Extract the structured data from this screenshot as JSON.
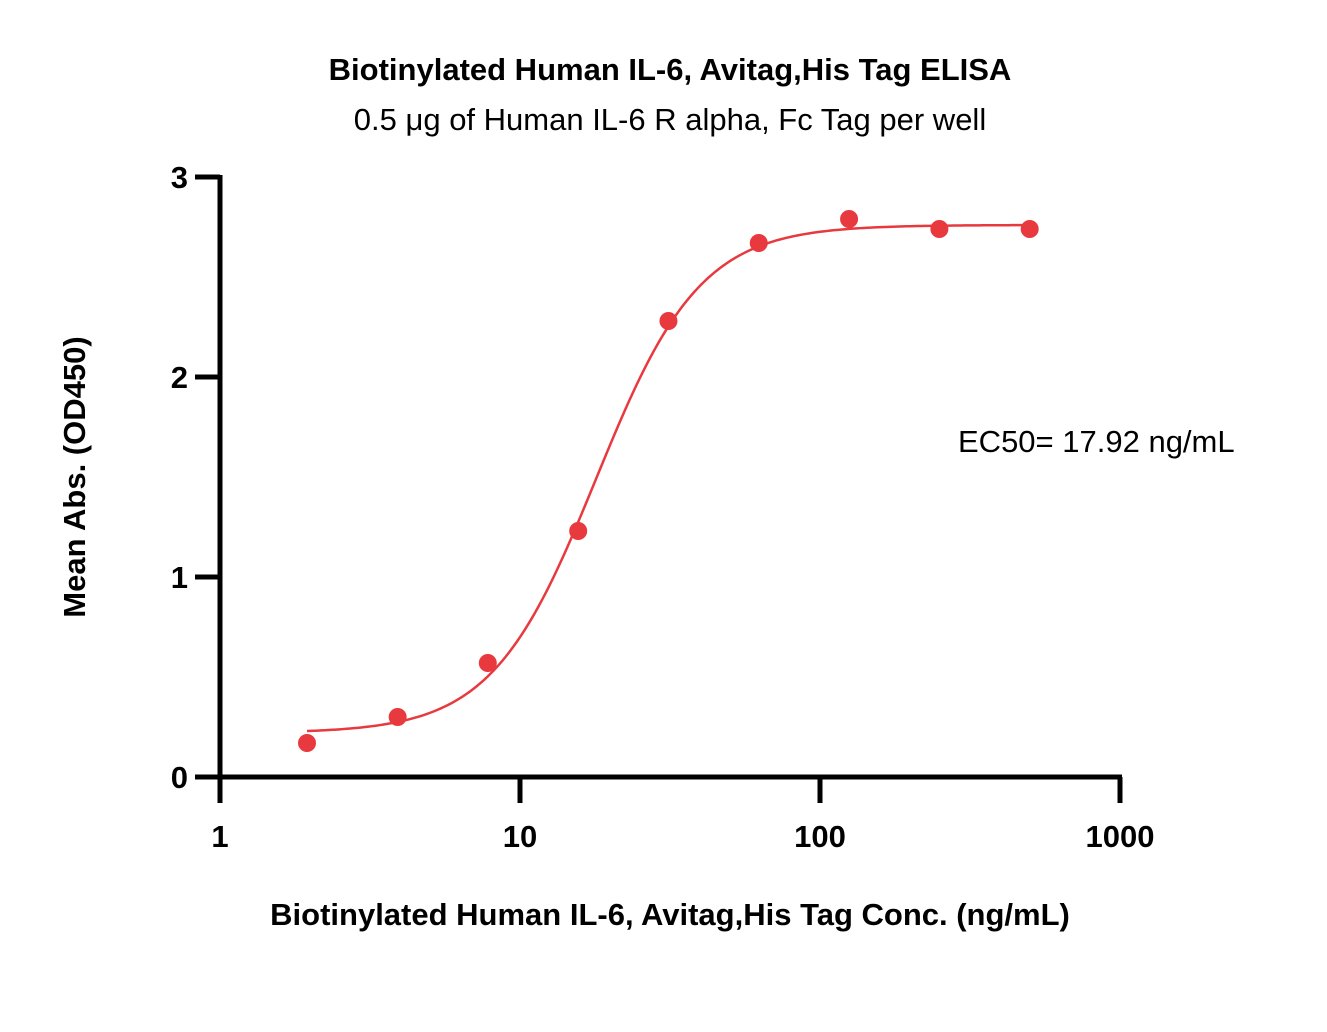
{
  "chart_data": {
    "type": "scatter",
    "title": "Biotinylated Human IL-6, Avitag,His Tag ELISA",
    "subtitle": "0.5 μg of Human IL-6 R alpha, Fc Tag per well",
    "xlabel": "Biotinylated Human IL-6, Avitag,His Tag Conc. (ng/mL)",
    "ylabel": "Mean Abs. (OD450)",
    "xscale": "log",
    "xlim": [
      1,
      1000
    ],
    "ylim": [
      0,
      3
    ],
    "x_ticks": [
      1,
      10,
      100,
      1000
    ],
    "x_tick_labels": [
      "1",
      "10",
      "100",
      "1000"
    ],
    "y_ticks": [
      0,
      1,
      2,
      3
    ],
    "y_tick_labels": [
      "0",
      "1",
      "2",
      "3"
    ],
    "grid": false,
    "color": "#e8393f",
    "series": [
      {
        "x": [
          1.95,
          3.91,
          7.81,
          15.63,
          31.25,
          62.5,
          125,
          250,
          500
        ],
        "y": [
          0.17,
          0.3,
          0.57,
          1.23,
          2.28,
          2.67,
          2.79,
          2.74,
          2.74
        ]
      }
    ],
    "fit_curve": {
      "model": "4PL",
      "bottom": 0.22,
      "top": 2.76,
      "ec50": 17.92,
      "hill": 2.5
    },
    "annotations": [
      {
        "text": "EC50= 17.92 ng/mL"
      }
    ]
  }
}
